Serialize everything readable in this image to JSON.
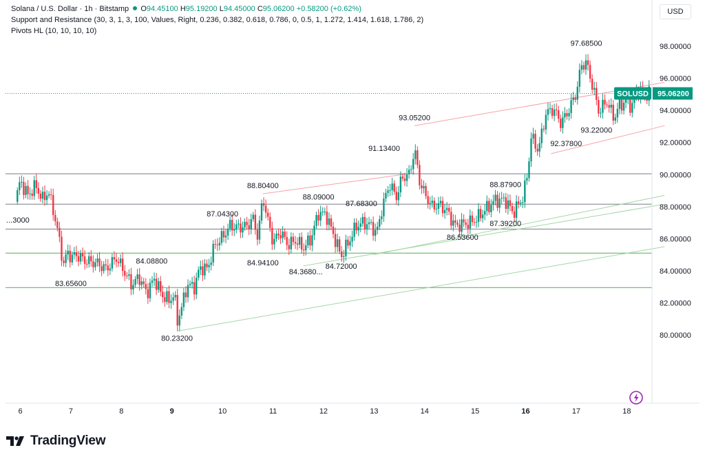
{
  "header": {
    "symbol": "Solana / U.S. Dollar · 1h · Bitstamp",
    "open_label": "O",
    "open": "94.45100",
    "high_label": "H",
    "high": "95.19200",
    "low_label": "L",
    "low": "94.45000",
    "close_label": "C",
    "close": "95.06200",
    "change": "+0.58200 (+0.62%)",
    "indicator1": "Support and Resistance (30, 3, 1, 3, 100, Values, Right, 0.236, 0.382, 0.618, 0.786, 0, 0.5, 1, 1.272, 1.414, 1.618, 1.786, 2)",
    "indicator2": "Pivots HL (10, 10, 10, 10)"
  },
  "currency": "USD",
  "footer": {
    "brand": "TradingView",
    "logo_icon": "tradingview-logo-icon"
  },
  "colors": {
    "up": "#089981",
    "down": "#f23645",
    "sr_line": "#787b86",
    "green_line": "#4caf50",
    "channel_red": "#f7a1a8",
    "channel_green": "#a5d6a7",
    "accent_purple": "#9c27b0"
  },
  "chart_data": {
    "type": "candlestick",
    "symbol": "SOLUSD",
    "timeframe": "1h",
    "ylim": [
      78.1,
      99.6
    ],
    "y_ticks": [
      "98.00000",
      "96.00000",
      "94.00000",
      "92.00000",
      "90.00000",
      "88.00000",
      "86.00000",
      "84.00000",
      "82.00000",
      "80.00000"
    ],
    "x_ticks": [
      "6",
      "7",
      "8",
      "9",
      "10",
      "11",
      "12",
      "13",
      "14",
      "15",
      "16",
      "17",
      "18"
    ],
    "bold_x_ticks": [
      "9",
      "16"
    ],
    "current_price": {
      "label": "SOLUSD",
      "value": "95.06200",
      "price": 95.062
    },
    "support_resistance_levels": [
      {
        "price": 90.05,
        "color": "#787b86"
      },
      {
        "price": 88.15,
        "color": "#787b86"
      },
      {
        "price": 86.6,
        "color": "#787b86"
      },
      {
        "price": 85.1,
        "color": "#4caf50"
      },
      {
        "price": 82.95,
        "color": "#4caf50"
      }
    ],
    "trend_lines": [
      {
        "from": [
          10.8,
          88.8
        ],
        "to": [
          13.8,
          90.1
        ],
        "color": "#f7a1a8"
      },
      {
        "from": [
          13.8,
          93.05
        ],
        "to": [
          18.75,
          95.75
        ],
        "color": "#f7a1a8"
      },
      {
        "from": [
          16.5,
          91.3
        ],
        "to": [
          18.75,
          93.05
        ],
        "color": "#f7a1a8"
      },
      {
        "from": [
          9.1,
          80.23
        ],
        "to": [
          18.75,
          85.5
        ],
        "color": "#a5d6a7"
      },
      {
        "from": [
          11.6,
          84.3
        ],
        "to": [
          18.75,
          88.15
        ],
        "color": "#a5d6a7"
      },
      {
        "from": [
          13.0,
          85.0
        ],
        "to": [
          18.75,
          88.7
        ],
        "color": "#a5d6a7"
      }
    ],
    "pivot_labels": [
      {
        "text": "97.68500",
        "x": 17.2,
        "price": 97.685,
        "pos": "high"
      },
      {
        "text": "93.05200",
        "x": 13.8,
        "price": 93.052,
        "pos": "high"
      },
      {
        "text": "91.13400",
        "x": 13.2,
        "price": 91.134,
        "pos": "high"
      },
      {
        "text": "88.87900",
        "x": 15.6,
        "price": 88.879,
        "pos": "high"
      },
      {
        "text": "88.80400",
        "x": 10.8,
        "price": 88.804,
        "pos": "high"
      },
      {
        "text": "88.09000",
        "x": 11.9,
        "price": 88.09,
        "pos": "high"
      },
      {
        "text": "87.68300",
        "x": 12.75,
        "price": 87.683,
        "pos": "high"
      },
      {
        "text": "87.04300",
        "x": 10.0,
        "price": 87.043,
        "pos": "high"
      },
      {
        "text": "84.08800",
        "x": 8.6,
        "price": 84.088,
        "pos": "high"
      },
      {
        "text": "93.22000",
        "x": 17.4,
        "price": 93.22,
        "pos": "low"
      },
      {
        "text": "92.37800",
        "x": 16.8,
        "price": 92.378,
        "pos": "low"
      },
      {
        "text": "87.39200",
        "x": 15.6,
        "price": 87.392,
        "pos": "low"
      },
      {
        "text": "86.53600",
        "x": 14.75,
        "price": 86.536,
        "pos": "low"
      },
      {
        "text": "84.94100",
        "x": 10.8,
        "price": 84.941,
        "pos": "low"
      },
      {
        "text": "84.72000",
        "x": 12.35,
        "price": 84.72,
        "pos": "low"
      },
      {
        "text": "84.3680...",
        "x": 11.65,
        "price": 84.368,
        "pos": "low"
      },
      {
        "text": "83.65600",
        "x": 7.0,
        "price": 83.656,
        "pos": "low"
      },
      {
        "text": "80.23200",
        "x": 9.1,
        "price": 80.232,
        "pos": "low"
      },
      {
        "text": "...3000",
        "x": 5.95,
        "price": 87.6,
        "pos": "low"
      }
    ],
    "price_path": [
      [
        5.9,
        88.3
      ],
      [
        6.0,
        89.6
      ],
      [
        6.15,
        88.7
      ],
      [
        6.3,
        89.3
      ],
      [
        6.45,
        88.4
      ],
      [
        6.55,
        89.0
      ],
      [
        6.65,
        87.8
      ],
      [
        6.75,
        86.3
      ],
      [
        6.85,
        84.4
      ],
      [
        6.95,
        85.2
      ],
      [
        7.0,
        84.8
      ],
      [
        7.1,
        85.0
      ],
      [
        7.3,
        84.6
      ],
      [
        7.5,
        84.5
      ],
      [
        7.7,
        84.1
      ],
      [
        7.9,
        84.8
      ],
      [
        8.05,
        84.0
      ],
      [
        8.2,
        83.1
      ],
      [
        8.35,
        83.6
      ],
      [
        8.5,
        82.6
      ],
      [
        8.65,
        83.5
      ],
      [
        8.8,
        82.5
      ],
      [
        8.95,
        82.1
      ],
      [
        9.05,
        82.6
      ],
      [
        9.1,
        80.8
      ],
      [
        9.2,
        81.8
      ],
      [
        9.3,
        83.1
      ],
      [
        9.45,
        83.0
      ],
      [
        9.55,
        84.2
      ],
      [
        9.7,
        84.1
      ],
      [
        9.85,
        85.6
      ],
      [
        10.0,
        86.1
      ],
      [
        10.15,
        86.8
      ],
      [
        10.3,
        86.7
      ],
      [
        10.5,
        86.8
      ],
      [
        10.6,
        87.3
      ],
      [
        10.7,
        86.1
      ],
      [
        10.8,
        88.6
      ],
      [
        10.9,
        87.1
      ],
      [
        11.0,
        85.8
      ],
      [
        11.15,
        86.4
      ],
      [
        11.3,
        85.6
      ],
      [
        11.45,
        85.9
      ],
      [
        11.6,
        85.4
      ],
      [
        11.75,
        86.0
      ],
      [
        11.9,
        87.6
      ],
      [
        12.05,
        87.5
      ],
      [
        12.2,
        86.2
      ],
      [
        12.35,
        84.9
      ],
      [
        12.5,
        85.8
      ],
      [
        12.65,
        86.8
      ],
      [
        12.8,
        87.0
      ],
      [
        12.95,
        86.8
      ],
      [
        13.05,
        86.3
      ],
      [
        13.15,
        87.8
      ],
      [
        13.3,
        89.4
      ],
      [
        13.45,
        88.6
      ],
      [
        13.55,
        89.8
      ],
      [
        13.7,
        90.0
      ],
      [
        13.8,
        91.6
      ],
      [
        13.9,
        89.6
      ],
      [
        14.0,
        88.8
      ],
      [
        14.15,
        88.0
      ],
      [
        14.3,
        88.1
      ],
      [
        14.45,
        87.7
      ],
      [
        14.6,
        86.8
      ],
      [
        14.75,
        86.9
      ],
      [
        14.9,
        87.0
      ],
      [
        15.05,
        87.3
      ],
      [
        15.2,
        87.8
      ],
      [
        15.4,
        88.4
      ],
      [
        15.6,
        88.4
      ],
      [
        15.75,
        87.6
      ],
      [
        15.95,
        88.6
      ],
      [
        16.05,
        90.3
      ],
      [
        16.1,
        92.4
      ],
      [
        16.25,
        91.5
      ],
      [
        16.4,
        93.8
      ],
      [
        16.55,
        94.1
      ],
      [
        16.7,
        93.2
      ],
      [
        16.85,
        94.0
      ],
      [
        17.0,
        95.1
      ],
      [
        17.1,
        96.8
      ],
      [
        17.2,
        97.0
      ],
      [
        17.35,
        95.2
      ],
      [
        17.45,
        93.9
      ],
      [
        17.6,
        94.6
      ],
      [
        17.75,
        93.5
      ],
      [
        17.85,
        94.3
      ],
      [
        18.0,
        94.6
      ],
      [
        18.1,
        94.2
      ],
      [
        18.2,
        95.3
      ],
      [
        18.35,
        94.9
      ],
      [
        18.45,
        95.06
      ]
    ]
  }
}
